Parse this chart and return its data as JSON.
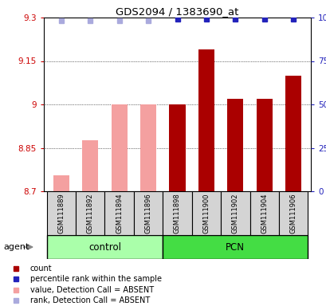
{
  "title": "GDS2094 / 1383690_at",
  "samples": [
    "GSM111889",
    "GSM111892",
    "GSM111894",
    "GSM111896",
    "GSM111898",
    "GSM111900",
    "GSM111902",
    "GSM111904",
    "GSM111906"
  ],
  "bar_values": [
    8.755,
    8.875,
    9.0,
    9.0,
    9.0,
    9.19,
    9.02,
    9.02,
    9.1
  ],
  "bar_colors": [
    "#f4a0a0",
    "#f4a0a0",
    "#f4a0a0",
    "#f4a0a0",
    "#aa0000",
    "#aa0000",
    "#aa0000",
    "#aa0000",
    "#aa0000"
  ],
  "rank_values": [
    98,
    98,
    98,
    98,
    99,
    99,
    99,
    99,
    99
  ],
  "rank_colors_absent": "#aaaadd",
  "rank_colors_present": "#2222bb",
  "absent_indices": [
    0,
    1,
    2,
    3
  ],
  "present_indices": [
    4,
    5,
    6,
    7,
    8
  ],
  "ylim_left": [
    8.7,
    9.3
  ],
  "ylim_right": [
    0,
    100
  ],
  "yticks_left": [
    8.7,
    8.85,
    9.0,
    9.15,
    9.3
  ],
  "yticks_right": [
    0,
    25,
    50,
    75,
    100
  ],
  "ylabel_left_color": "#cc0000",
  "ylabel_right_color": "#2222bb",
  "control_label": "control",
  "pcn_label": "PCN",
  "agent_label": "agent",
  "legend_items": [
    {
      "label": "count",
      "color": "#aa0000"
    },
    {
      "label": "percentile rank within the sample",
      "color": "#2222bb"
    },
    {
      "label": "value, Detection Call = ABSENT",
      "color": "#f4a0a0"
    },
    {
      "label": "rank, Detection Call = ABSENT",
      "color": "#aaaadd"
    }
  ],
  "n_control": 4,
  "n_pcn": 5,
  "bar_width": 0.55,
  "bg_group_control": "#aaffaa",
  "bg_group_pcn": "#44dd44"
}
